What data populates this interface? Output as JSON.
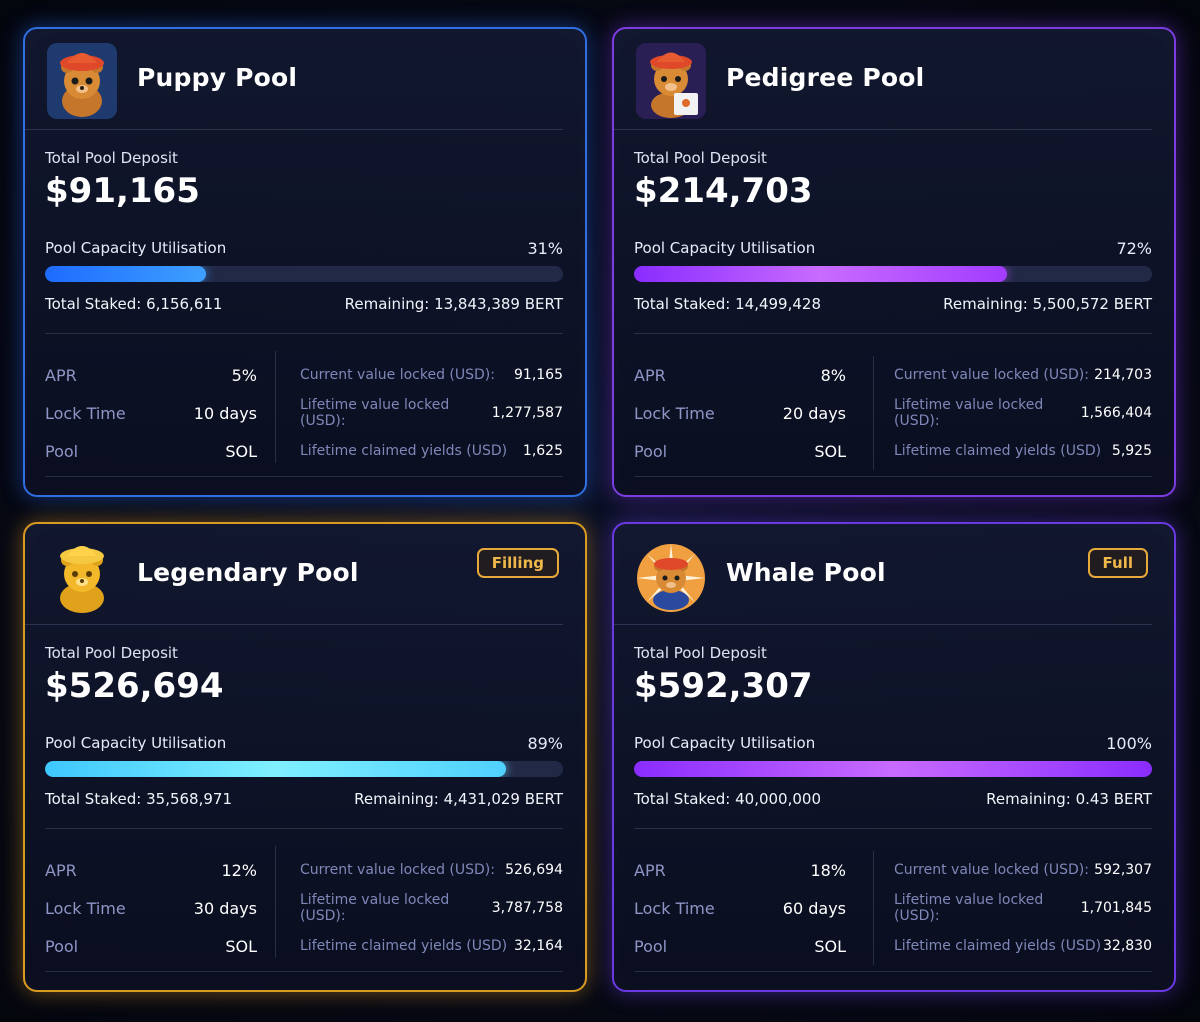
{
  "colors": {
    "blue_accent": "#2f7fff",
    "purple_accent": "#8a3cff",
    "gold_accent": "#e0a526",
    "badge": "#f0b84b"
  },
  "pools": [
    {
      "title": "Puppy Pool",
      "avatar_icon": "bear-red-hat-icon",
      "badge": "",
      "deposit_label": "Total Pool Deposit",
      "deposit_value": "$91,165",
      "util_label": "Pool Capacity Utilisation",
      "util_pct_text": "31%",
      "util_fraction": 0.31,
      "staked": "Total Staked: 6,156,611",
      "remaining": "Remaining: 13,843,389 BERT",
      "stats": [
        {
          "k": "APR",
          "v": "5%"
        },
        {
          "k": "Lock Time",
          "v": "10 days"
        },
        {
          "k": "Pool",
          "v": "SOL"
        }
      ],
      "values": [
        {
          "k": "Current value locked (USD):",
          "v": "91,165"
        },
        {
          "k": "Lifetime value locked (USD):",
          "v": "1,277,587"
        },
        {
          "k": "Lifetime claimed yields (USD)",
          "v": "1,625"
        }
      ]
    },
    {
      "title": "Pedigree Pool",
      "avatar_icon": "bear-with-certificate-icon",
      "badge": "",
      "deposit_label": "Total Pool Deposit",
      "deposit_value": "$214,703",
      "util_label": "Pool Capacity Utilisation",
      "util_pct_text": "72%",
      "util_fraction": 0.72,
      "staked": "Total Staked: 14,499,428",
      "remaining": "Remaining: 5,500,572 BERT",
      "stats": [
        {
          "k": "APR",
          "v": "8%"
        },
        {
          "k": "Lock Time",
          "v": "20 days"
        },
        {
          "k": "Pool",
          "v": "SOL"
        }
      ],
      "values": [
        {
          "k": "Current value locked (USD):",
          "v": "214,703"
        },
        {
          "k": "Lifetime value locked (USD):",
          "v": "1,566,404"
        },
        {
          "k": "Lifetime claimed yields (USD)",
          "v": "5,925"
        }
      ]
    },
    {
      "title": "Legendary Pool",
      "avatar_icon": "golden-bear-icon",
      "badge": "Filling",
      "deposit_label": "Total Pool Deposit",
      "deposit_value": "$526,694",
      "util_label": "Pool Capacity Utilisation",
      "util_pct_text": "89%",
      "util_fraction": 0.89,
      "staked": "Total Staked: 35,568,971",
      "remaining": "Remaining: 4,431,029 BERT",
      "stats": [
        {
          "k": "APR",
          "v": "12%"
        },
        {
          "k": "Lock Time",
          "v": "30 days"
        },
        {
          "k": "Pool",
          "v": "SOL"
        }
      ],
      "values": [
        {
          "k": "Current value locked (USD):",
          "v": "526,694"
        },
        {
          "k": "Lifetime value locked (USD):",
          "v": "3,787,758"
        },
        {
          "k": "Lifetime claimed yields (USD)",
          "v": "32,164"
        }
      ]
    },
    {
      "title": "Whale Pool",
      "avatar_icon": "bear-sunburst-icon",
      "badge": "Full",
      "deposit_label": "Total Pool Deposit",
      "deposit_value": "$592,307",
      "util_label": "Pool Capacity Utilisation",
      "util_pct_text": "100%",
      "util_fraction": 1.0,
      "staked": "Total Staked: 40,000,000",
      "remaining": "Remaining: 0.43 BERT",
      "stats": [
        {
          "k": "APR",
          "v": "18%"
        },
        {
          "k": "Lock Time",
          "v": "60 days"
        },
        {
          "k": "Pool",
          "v": "SOL"
        }
      ],
      "values": [
        {
          "k": "Current value locked (USD):",
          "v": "592,307"
        },
        {
          "k": "Lifetime value locked (USD):",
          "v": "1,701,845"
        },
        {
          "k": "Lifetime claimed yields (USD)",
          "v": "32,830"
        }
      ]
    }
  ]
}
